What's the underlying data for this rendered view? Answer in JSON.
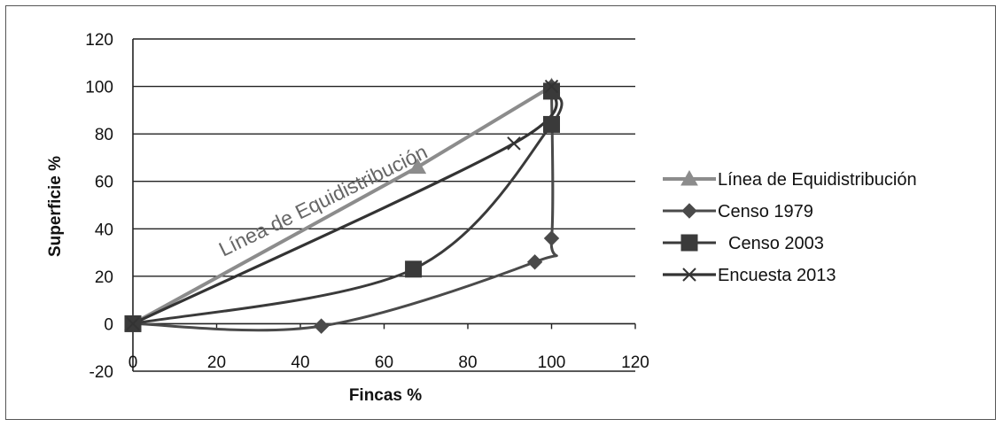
{
  "chart_data": {
    "type": "line",
    "title": "",
    "xlabel": "Fincas %",
    "ylabel": "Superficie %",
    "xlim": [
      0,
      120
    ],
    "ylim": [
      -20,
      120
    ],
    "xticks": [
      0,
      20,
      40,
      60,
      80,
      100,
      120
    ],
    "yticks": [
      -20,
      0,
      20,
      40,
      60,
      80,
      100,
      120
    ],
    "grid": "horizontal",
    "legend_position": "right",
    "annotation": "Línea de Equidistribución",
    "series": [
      {
        "name": "Línea de Equidistribución",
        "marker": "triangle",
        "color": "#8c8c8c",
        "points": [
          [
            0,
            0
          ],
          [
            68,
            66
          ],
          [
            100,
            100
          ]
        ]
      },
      {
        "name": "Censo 1979",
        "marker": "diamond",
        "color": "#4a4a4a",
        "points": [
          [
            0,
            0
          ],
          [
            45,
            -1
          ],
          [
            96,
            26
          ],
          [
            100,
            36
          ],
          [
            100,
            100
          ]
        ]
      },
      {
        "name": "Censo 2003",
        "marker": "square",
        "color": "#3a3a3a",
        "points": [
          [
            0,
            0
          ],
          [
            67,
            23
          ],
          [
            100,
            84
          ],
          [
            100,
            98
          ]
        ]
      },
      {
        "name": "Encuesta 2013",
        "marker": "x",
        "color": "#333333",
        "points": [
          [
            0,
            0
          ],
          [
            91,
            76
          ],
          [
            100,
            100
          ]
        ]
      }
    ]
  }
}
